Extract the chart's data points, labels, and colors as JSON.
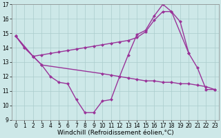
{
  "xlabel": "Windchill (Refroidissement éolien,°C)",
  "background_color": "#cde8e8",
  "grid_color": "#aacccc",
  "line_color": "#993399",
  "xlim": [
    -0.5,
    23.5
  ],
  "ylim": [
    9,
    17
  ],
  "yticks": [
    9,
    10,
    11,
    12,
    13,
    14,
    15,
    16,
    17
  ],
  "xticks": [
    0,
    1,
    2,
    3,
    4,
    5,
    6,
    7,
    8,
    9,
    10,
    11,
    12,
    13,
    14,
    15,
    16,
    17,
    18,
    19,
    20,
    21,
    22,
    23
  ],
  "line1_x": [
    0,
    1,
    2,
    3,
    4,
    5,
    6,
    7,
    8,
    9,
    10,
    11,
    12,
    13,
    14,
    15,
    16,
    17,
    18,
    19,
    20
  ],
  "line1_y": [
    14.8,
    14.0,
    13.4,
    13.5,
    13.6,
    13.7,
    13.8,
    13.9,
    14.0,
    14.1,
    14.2,
    14.3,
    14.4,
    14.5,
    14.7,
    15.1,
    15.9,
    16.5,
    16.5,
    15.8,
    13.6
  ],
  "line2_x": [
    0,
    1,
    2,
    3,
    4,
    5,
    6,
    7,
    8,
    9,
    10,
    11,
    12,
    13,
    14,
    15,
    16,
    17,
    18,
    20,
    21,
    22,
    23
  ],
  "line2_y": [
    14.8,
    14.0,
    13.4,
    12.8,
    12.0,
    11.6,
    11.5,
    10.4,
    9.5,
    9.5,
    10.3,
    10.4,
    12.0,
    13.5,
    14.9,
    15.2,
    16.2,
    17.0,
    16.5,
    13.6,
    12.6,
    11.1,
    11.1
  ],
  "line3_x": [
    0,
    2,
    3,
    10,
    11,
    12,
    13,
    14,
    15,
    16,
    17,
    18,
    19,
    20,
    21,
    22,
    23
  ],
  "line3_y": [
    14.8,
    13.4,
    12.8,
    12.2,
    12.1,
    12.0,
    11.9,
    11.8,
    11.7,
    11.7,
    11.6,
    11.6,
    11.5,
    11.5,
    11.4,
    11.3,
    11.1
  ],
  "marker": "D",
  "markersize": 2.5,
  "linewidth": 1.0,
  "tick_fontsize": 5.5,
  "xlabel_fontsize": 6.5
}
